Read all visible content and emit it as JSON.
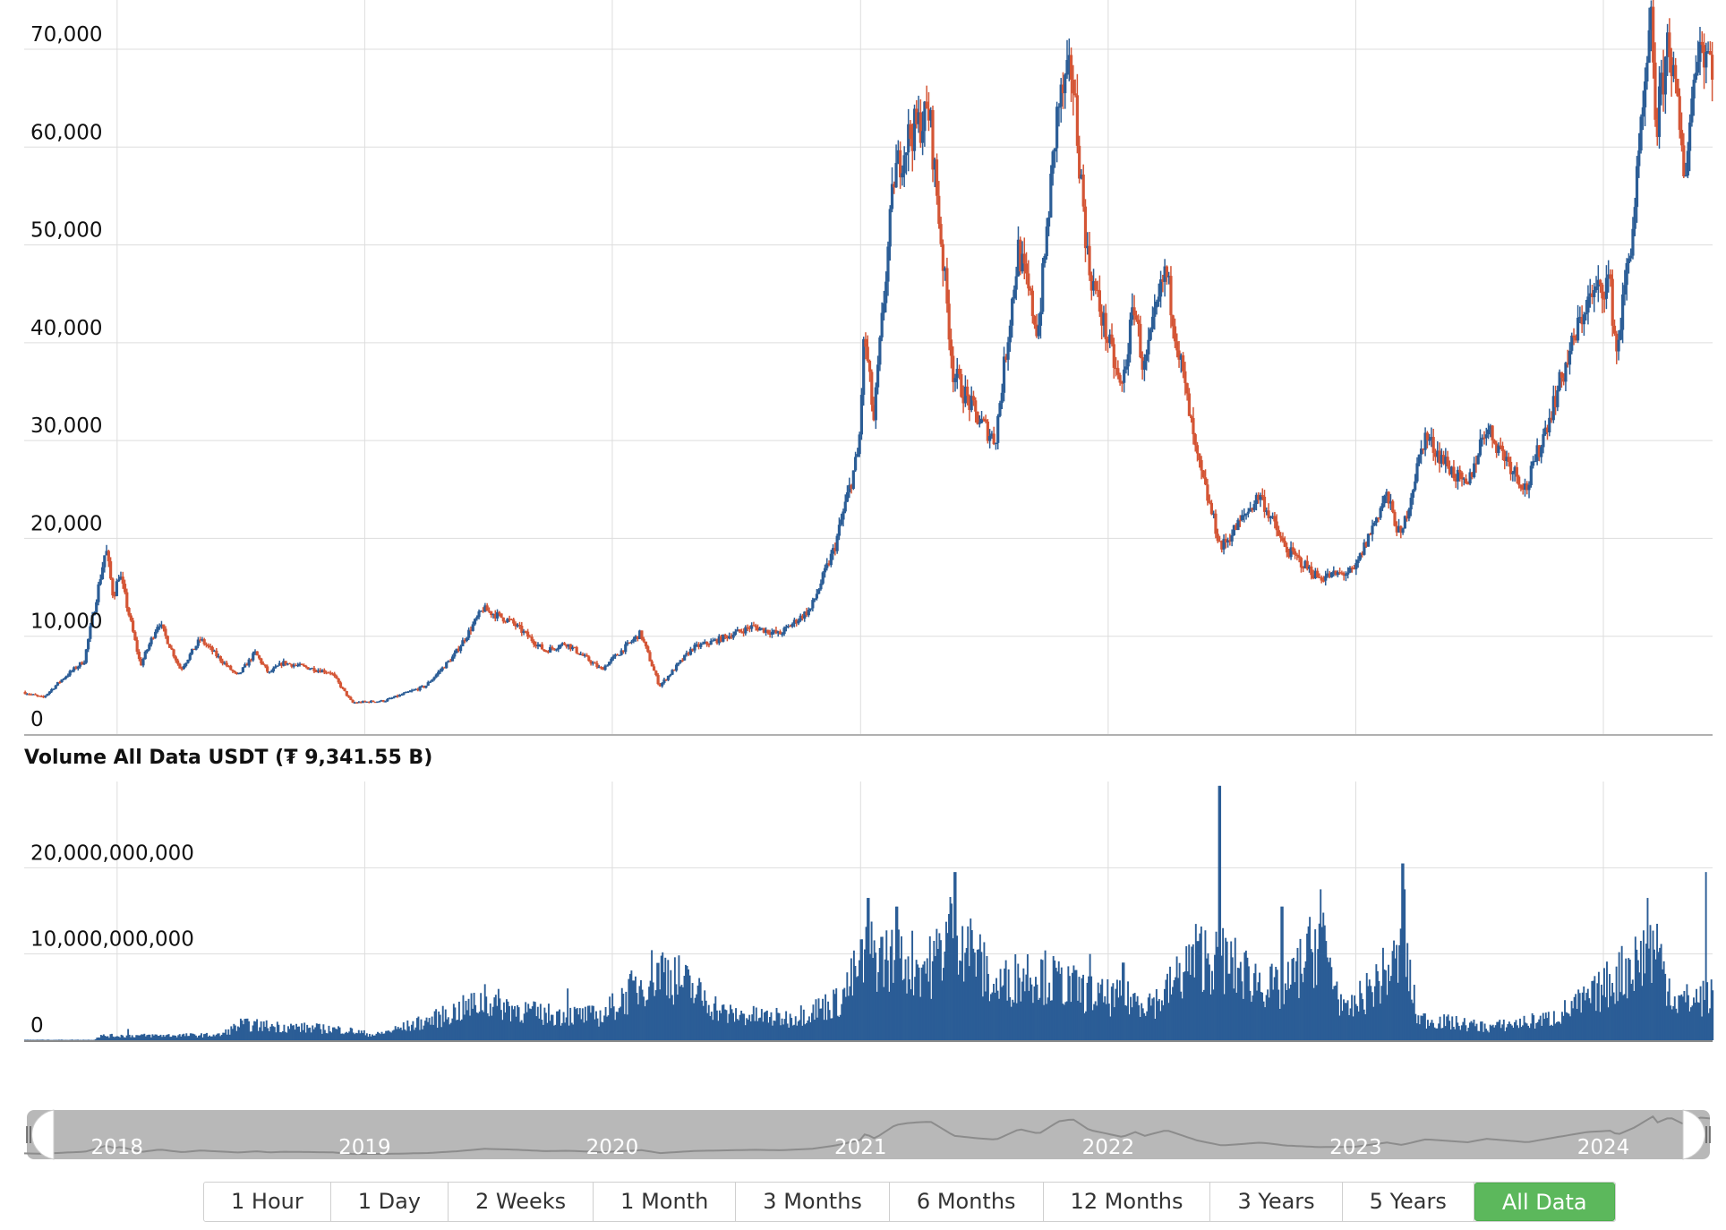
{
  "colors": {
    "up": "#2b5d96",
    "down": "#d45535",
    "volume": "#2b5d96",
    "grid": "#dddddd",
    "navigator": "#b8b8b8",
    "active_button": "#5cb85c"
  },
  "volume_title": "Volume All Data USDT (₮ 9,341.55 B)",
  "range_buttons": [
    {
      "label": "1 Hour",
      "active": false
    },
    {
      "label": "1 Day",
      "active": false
    },
    {
      "label": "2 Weeks",
      "active": false
    },
    {
      "label": "1 Month",
      "active": false
    },
    {
      "label": "3 Months",
      "active": false
    },
    {
      "label": "6 Months",
      "active": false
    },
    {
      "label": "12 Months",
      "active": false
    },
    {
      "label": "3 Years",
      "active": false
    },
    {
      "label": "5 Years",
      "active": false
    },
    {
      "label": "All Data",
      "active": true
    }
  ],
  "navigator_labels": [
    "2018",
    "2019",
    "2020",
    "2021",
    "2022",
    "2023",
    "2024"
  ],
  "chart_data": [
    {
      "type": "candlestick",
      "x_range": [
        "2017-08-17",
        "2024-06-10"
      ],
      "ylim": [
        0,
        70000
      ],
      "yticks": [
        {
          "v": 0,
          "label": "0"
        },
        {
          "v": 10000,
          "label": "10,000"
        },
        {
          "v": 20000,
          "label": "20,000"
        },
        {
          "v": 30000,
          "label": "30,000"
        },
        {
          "v": 40000,
          "label": "40,000"
        },
        {
          "v": 50000,
          "label": "50,000"
        },
        {
          "v": 60000,
          "label": "60,000"
        },
        {
          "v": 70000,
          "label": "70,000"
        }
      ],
      "year_gridlines": [
        "2018-01-01",
        "2019-01-01",
        "2020-01-01",
        "2021-01-01",
        "2022-01-01",
        "2023-01-01",
        "2024-01-01"
      ],
      "price_path": [
        [
          "2017-08-17",
          4300
        ],
        [
          "2017-09-15",
          3700
        ],
        [
          "2017-10-15",
          5700
        ],
        [
          "2017-11-15",
          7500
        ],
        [
          "2017-12-17",
          19000
        ],
        [
          "2017-12-28",
          14000
        ],
        [
          "2018-01-06",
          16500
        ],
        [
          "2018-02-06",
          7000
        ],
        [
          "2018-03-05",
          11500
        ],
        [
          "2018-04-06",
          6600
        ],
        [
          "2018-05-05",
          9700
        ],
        [
          "2018-06-29",
          5900
        ],
        [
          "2018-07-25",
          8300
        ],
        [
          "2018-08-14",
          6200
        ],
        [
          "2018-09-04",
          7300
        ],
        [
          "2018-11-14",
          6300
        ],
        [
          "2018-12-15",
          3200
        ],
        [
          "2019-02-01",
          3400
        ],
        [
          "2019-04-02",
          4900
        ],
        [
          "2019-05-14",
          8000
        ],
        [
          "2019-06-26",
          12800
        ],
        [
          "2019-08-06",
          11500
        ],
        [
          "2019-09-25",
          8500
        ],
        [
          "2019-10-26",
          9300
        ],
        [
          "2019-12-17",
          6600
        ],
        [
          "2020-02-13",
          10300
        ],
        [
          "2020-03-12",
          4900
        ],
        [
          "2020-04-30",
          8800
        ],
        [
          "2020-06-01",
          9500
        ],
        [
          "2020-07-27",
          11000
        ],
        [
          "2020-09-05",
          10200
        ],
        [
          "2020-10-21",
          12800
        ],
        [
          "2020-11-25",
          19000
        ],
        [
          "2020-12-31",
          29000
        ],
        [
          "2021-01-08",
          41000
        ],
        [
          "2021-01-22",
          32000
        ],
        [
          "2021-02-21",
          57000
        ],
        [
          "2021-03-13",
          61000
        ],
        [
          "2021-04-14",
          63500
        ],
        [
          "2021-05-19",
          37000
        ],
        [
          "2021-06-22",
          32500
        ],
        [
          "2021-07-20",
          30000
        ],
        [
          "2021-08-23",
          49500
        ],
        [
          "2021-09-21",
          41000
        ],
        [
          "2021-10-20",
          64000
        ],
        [
          "2021-11-10",
          68000
        ],
        [
          "2021-12-04",
          48000
        ],
        [
          "2022-01-22",
          35000
        ],
        [
          "2022-02-10",
          44000
        ],
        [
          "2022-02-24",
          37000
        ],
        [
          "2022-03-28",
          47500
        ],
        [
          "2022-05-12",
          28500
        ],
        [
          "2022-06-18",
          19000
        ],
        [
          "2022-08-14",
          24500
        ],
        [
          "2022-09-20",
          19000
        ],
        [
          "2022-11-09",
          16000
        ],
        [
          "2022-12-31",
          16600
        ],
        [
          "2023-02-16",
          24500
        ],
        [
          "2023-03-10",
          20000
        ],
        [
          "2023-04-14",
          30500
        ],
        [
          "2023-06-15",
          25000
        ],
        [
          "2023-07-13",
          31500
        ],
        [
          "2023-09-11",
          25000
        ],
        [
          "2023-10-24",
          34500
        ],
        [
          "2023-12-08",
          44000
        ],
        [
          "2024-01-11",
          46500
        ],
        [
          "2024-01-22",
          39000
        ],
        [
          "2024-02-15",
          52000
        ],
        [
          "2024-03-14",
          73000
        ],
        [
          "2024-03-20",
          61500
        ],
        [
          "2024-04-08",
          71500
        ],
        [
          "2024-05-01",
          57000
        ],
        [
          "2024-05-21",
          71000
        ],
        [
          "2024-06-10",
          69000
        ]
      ]
    },
    {
      "type": "bar",
      "title": "Volume All Data USDT (₮ 9,341.55 B)",
      "ylim": [
        0,
        30000000000
      ],
      "yticks": [
        {
          "v": 0,
          "label": "0"
        },
        {
          "v": 10000000000,
          "label": "10,000,000,000"
        },
        {
          "v": 20000000000,
          "label": "20,000,000,000"
        }
      ],
      "volume_path": [
        [
          "2017-08-17",
          50000000.0
        ],
        [
          "2017-11-27",
          50000000.0
        ],
        [
          "2017-12-05",
          500000000.0
        ],
        [
          "2018-06-01",
          600000000.0
        ],
        [
          "2018-07-01",
          1800000000.0
        ],
        [
          "2018-12-01",
          1200000000.0
        ],
        [
          "2019-01-15",
          600000000.0
        ],
        [
          "2019-04-15",
          2500000000.0
        ],
        [
          "2019-06-26",
          4500000000.0
        ],
        [
          "2019-09-15",
          3000000000.0
        ],
        [
          "2019-12-15",
          2800000000.0
        ],
        [
          "2020-03-12",
          8500000000.0
        ],
        [
          "2020-06-15",
          3000000000.0
        ],
        [
          "2020-09-15",
          2500000000.0
        ],
        [
          "2020-11-30",
          4500000000.0
        ],
        [
          "2021-01-10",
          10000000000.0
        ],
        [
          "2021-04-15",
          8500000000.0
        ],
        [
          "2021-05-19",
          14000000000.0
        ],
        [
          "2021-07-15",
          6000000000.0
        ],
        [
          "2021-09-07",
          8000000000.0
        ],
        [
          "2021-12-15",
          5000000000.0
        ],
        [
          "2022-03-15",
          4500000000.0
        ],
        [
          "2022-05-12",
          10000000000.0
        ],
        [
          "2022-06-18",
          9000000000.0
        ],
        [
          "2022-09-15",
          5500000000.0
        ],
        [
          "2022-11-09",
          12000000000.0
        ],
        [
          "2022-12-15",
          3000000000.0
        ],
        [
          "2023-03-13",
          10000000000.0
        ],
        [
          "2023-04-01",
          2500000000.0
        ],
        [
          "2023-07-15",
          1500000000.0
        ],
        [
          "2023-10-15",
          2500000000.0
        ],
        [
          "2023-12-15",
          5000000000.0
        ],
        [
          "2024-03-15",
          11000000000.0
        ],
        [
          "2024-04-15",
          4500000000.0
        ],
        [
          "2024-06-10",
          5000000000.0
        ]
      ],
      "spikes": [
        [
          "2018-01-16",
          1300000000.0
        ],
        [
          "2019-06-26",
          6500000000.0
        ],
        [
          "2019-10-26",
          6000000000.0
        ],
        [
          "2020-03-12",
          9800000000.0
        ],
        [
          "2021-01-11",
          16500000000.0
        ],
        [
          "2021-02-22",
          15500000000.0
        ],
        [
          "2021-05-19",
          19500000000.0
        ],
        [
          "2021-06-21",
          10500000000.0
        ],
        [
          "2021-12-04",
          10000000000.0
        ],
        [
          "2022-01-22",
          9000000000.0
        ],
        [
          "2022-05-12",
          11500000000.0
        ],
        [
          "2022-06-13",
          29500000000.0
        ],
        [
          "2022-06-18",
          13000000000.0
        ],
        [
          "2022-09-13",
          15500000000.0
        ],
        [
          "2022-11-09",
          17500000000.0
        ],
        [
          "2023-03-10",
          20500000000.0
        ],
        [
          "2023-03-13",
          17500000000.0
        ],
        [
          "2024-03-05",
          16500000000.0
        ],
        [
          "2024-03-19",
          13500000000.0
        ],
        [
          "2024-05-30",
          19500000000.0
        ]
      ]
    }
  ]
}
